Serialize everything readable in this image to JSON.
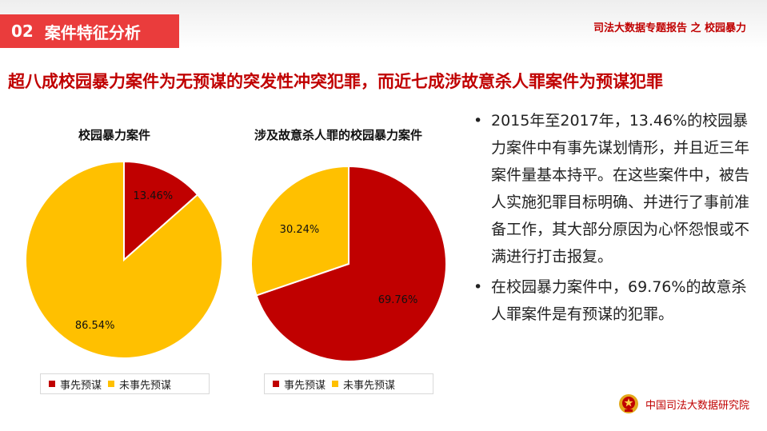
{
  "header": {
    "section_number": "02",
    "section_title": "案件特征分析",
    "report_title": "司法大数据专题报告 之 校园暴力"
  },
  "headline": "超八成校园暴力案件为无预谋的突发性冲突犯罪，而近七成涉故意杀人罪案件为预谋犯罪",
  "colors": {
    "premeditated": "#c00000",
    "not_premeditated": "#ffc000"
  },
  "chart_data": [
    {
      "type": "pie",
      "title": "校园暴力案件",
      "categories": [
        "事先预谋",
        "未事先预谋"
      ],
      "values": [
        13.46,
        86.54
      ],
      "labels": [
        "13.46%",
        "86.54%"
      ],
      "legend": "bottom"
    },
    {
      "type": "pie",
      "title": "涉及故意杀人罪的校园暴力案件",
      "categories": [
        "事先预谋",
        "未事先预谋"
      ],
      "values": [
        69.76,
        30.24
      ],
      "labels": [
        "69.76%",
        "30.24%"
      ],
      "legend": "bottom"
    }
  ],
  "bullets": [
    "2015年至2017年，13.46%的校园暴力案件中有事先谋划情形，并且近三年案件量基本持平。在这些案件中，被告人实施犯罪目标明确、并进行了事前准备工作，其大部分原因为心怀怨恨或不满进行打击报复。",
    "在校园暴力案件中，69.76%的故意杀人罪案件是有预谋的犯罪。"
  ],
  "bullet_symbol": "•",
  "footer": {
    "org": "中国司法大数据研究院",
    "emblem_icon": "court-emblem-icon"
  }
}
